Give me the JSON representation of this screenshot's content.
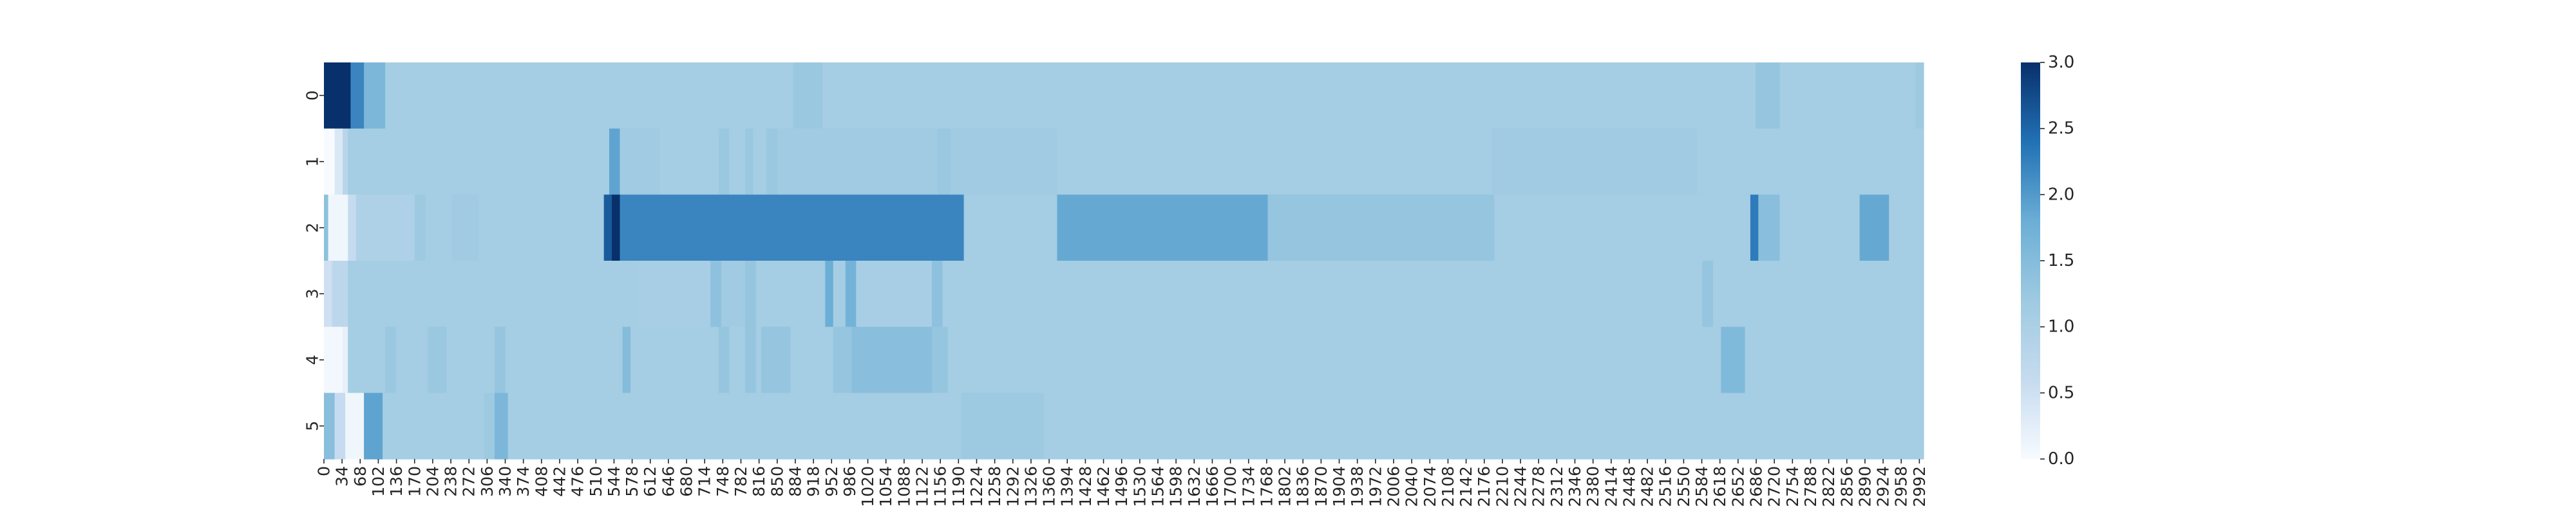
{
  "chart_data": {
    "type": "heatmap",
    "title": "",
    "xlabel": "",
    "ylabel": "",
    "rows": [
      "0",
      "1",
      "2",
      "3",
      "4",
      "5"
    ],
    "x_range": [
      0,
      3000
    ],
    "x_tick_step": 34,
    "x_tick_labels": [
      "0",
      "34",
      "68",
      "102",
      "136",
      "170",
      "204",
      "238",
      "272",
      "306",
      "340",
      "374",
      "408",
      "442",
      "476",
      "510",
      "544",
      "578",
      "612",
      "646",
      "680",
      "714",
      "748",
      "782",
      "816",
      "850",
      "884",
      "918",
      "952",
      "986",
      "1020",
      "1054",
      "1088",
      "1122",
      "1156",
      "1190",
      "1224",
      "1258",
      "1292",
      "1326",
      "1360",
      "1394",
      "1428",
      "1462",
      "1496",
      "1530",
      "1564",
      "1598",
      "1632",
      "1666",
      "1700",
      "1734",
      "1768",
      "1802",
      "1836",
      "1870",
      "1904",
      "1938",
      "1972",
      "2006",
      "2040",
      "2074",
      "2108",
      "2142",
      "2176",
      "2210",
      "2244",
      "2278",
      "2312",
      "2346",
      "2380",
      "2414",
      "2448",
      "2482",
      "2516",
      "2550",
      "2584",
      "2618",
      "2652",
      "2686",
      "2720",
      "2754",
      "2788",
      "2822",
      "2856",
      "2890",
      "2924",
      "2958",
      "2992"
    ],
    "value_range": [
      0,
      3
    ],
    "colorscale": [
      "#f7fbff",
      "#c6dbef",
      "#9ecae1",
      "#6baed6",
      "#2171b5",
      "#08306b"
    ],
    "colorbar": {
      "ticks": [
        0.0,
        0.5,
        1.0,
        1.5,
        2.0,
        2.5,
        3.0
      ],
      "labels": [
        "0.0",
        "0.5",
        "1.0",
        "1.5",
        "2.0",
        "2.5",
        "3.0"
      ]
    },
    "series": [
      {
        "row": "0",
        "segments": [
          [
            0,
            50,
            3.0
          ],
          [
            50,
            75,
            2.2
          ],
          [
            75,
            115,
            1.6
          ],
          [
            115,
            880,
            1.1
          ],
          [
            880,
            935,
            1.25
          ],
          [
            935,
            2685,
            1.1
          ],
          [
            2685,
            2730,
            1.3
          ],
          [
            2730,
            2985,
            1.1
          ],
          [
            2985,
            3000,
            1.2
          ]
        ]
      },
      {
        "row": "1",
        "segments": [
          [
            0,
            20,
            0.0
          ],
          [
            20,
            35,
            0.35
          ],
          [
            35,
            45,
            0.8
          ],
          [
            45,
            380,
            1.1
          ],
          [
            380,
            535,
            1.1
          ],
          [
            535,
            555,
            1.9
          ],
          [
            555,
            630,
            1.15
          ],
          [
            630,
            740,
            1.1
          ],
          [
            740,
            760,
            1.25
          ],
          [
            760,
            790,
            1.1
          ],
          [
            790,
            805,
            1.25
          ],
          [
            805,
            830,
            1.1
          ],
          [
            830,
            850,
            1.25
          ],
          [
            850,
            960,
            1.15
          ],
          [
            960,
            1150,
            1.15
          ],
          [
            1150,
            1175,
            1.25
          ],
          [
            1175,
            1375,
            1.15
          ],
          [
            1375,
            2190,
            1.1
          ],
          [
            2190,
            2575,
            1.15
          ],
          [
            2575,
            3000,
            1.1
          ]
        ]
      },
      {
        "row": "2",
        "segments": [
          [
            0,
            8,
            1.4
          ],
          [
            8,
            45,
            0.1
          ],
          [
            45,
            60,
            0.6
          ],
          [
            60,
            170,
            0.95
          ],
          [
            170,
            190,
            1.2
          ],
          [
            190,
            240,
            1.1
          ],
          [
            240,
            290,
            1.15
          ],
          [
            290,
            525,
            1.1
          ],
          [
            525,
            540,
            2.6
          ],
          [
            540,
            555,
            3.0
          ],
          [
            555,
            1200,
            2.2
          ],
          [
            1200,
            1375,
            1.1
          ],
          [
            1375,
            1770,
            1.85
          ],
          [
            1770,
            2195,
            1.3
          ],
          [
            2195,
            2675,
            1.1
          ],
          [
            2675,
            2690,
            2.3
          ],
          [
            2690,
            2730,
            1.45
          ],
          [
            2730,
            2880,
            1.1
          ],
          [
            2880,
            2935,
            1.85
          ],
          [
            2935,
            3000,
            1.1
          ]
        ]
      },
      {
        "row": "3",
        "segments": [
          [
            0,
            15,
            0.5
          ],
          [
            15,
            45,
            0.75
          ],
          [
            45,
            590,
            1.1
          ],
          [
            590,
            725,
            1.05
          ],
          [
            725,
            745,
            1.4
          ],
          [
            745,
            790,
            1.15
          ],
          [
            790,
            810,
            1.3
          ],
          [
            810,
            940,
            1.1
          ],
          [
            940,
            955,
            1.8
          ],
          [
            955,
            978,
            1.1
          ],
          [
            978,
            998,
            1.7
          ],
          [
            998,
            1140,
            1.05
          ],
          [
            1140,
            1160,
            1.4
          ],
          [
            1160,
            2585,
            1.1
          ],
          [
            2585,
            2605,
            1.3
          ],
          [
            2605,
            3000,
            1.1
          ]
        ]
      },
      {
        "row": "4",
        "segments": [
          [
            0,
            35,
            0.05
          ],
          [
            35,
            45,
            0.2
          ],
          [
            45,
            115,
            1.1
          ],
          [
            115,
            135,
            1.25
          ],
          [
            135,
            195,
            1.1
          ],
          [
            195,
            230,
            1.25
          ],
          [
            230,
            320,
            1.1
          ],
          [
            320,
            340,
            1.3
          ],
          [
            340,
            560,
            1.1
          ],
          [
            560,
            575,
            1.5
          ],
          [
            575,
            740,
            1.1
          ],
          [
            740,
            760,
            1.3
          ],
          [
            760,
            790,
            1.1
          ],
          [
            790,
            810,
            1.3
          ],
          [
            810,
            820,
            1.1
          ],
          [
            820,
            875,
            1.3
          ],
          [
            875,
            955,
            1.1
          ],
          [
            955,
            990,
            1.3
          ],
          [
            990,
            1140,
            1.45
          ],
          [
            1140,
            1170,
            1.3
          ],
          [
            1170,
            2620,
            1.1
          ],
          [
            2620,
            2665,
            1.55
          ],
          [
            2665,
            3000,
            1.1
          ]
        ]
      },
      {
        "row": "5",
        "segments": [
          [
            0,
            20,
            1.45
          ],
          [
            20,
            40,
            0.6
          ],
          [
            40,
            75,
            0.1
          ],
          [
            75,
            110,
            1.9
          ],
          [
            110,
            300,
            1.1
          ],
          [
            300,
            320,
            1.2
          ],
          [
            320,
            345,
            1.6
          ],
          [
            345,
            1195,
            1.1
          ],
          [
            1195,
            1350,
            1.2
          ],
          [
            1350,
            3000,
            1.1
          ]
        ]
      }
    ]
  }
}
